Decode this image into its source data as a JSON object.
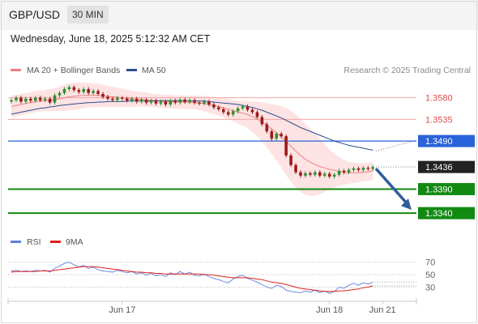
{
  "header": {
    "pair": "GBP/USD",
    "timeframe": "30 MIN"
  },
  "datetime": "Wednesday, June 18, 2025 5:12:32 AM CET",
  "legend": {
    "items": [
      {
        "label": "MA 20 + Bollinger Bands",
        "color": "#f08080"
      },
      {
        "label": "MA 50",
        "color": "#2a4f8f"
      }
    ],
    "credit": "Research © 2025 Trading Central"
  },
  "rsi_legend": {
    "items": [
      {
        "label": "RSI",
        "color": "#5b7fde"
      },
      {
        "label": "9MA",
        "color": "#e0201e"
      }
    ]
  },
  "chart_data": [
    {
      "type": "candlestick",
      "x_labels": [
        "Jun 17",
        "Jun 18",
        "Jun 21"
      ],
      "ylim": [
        1.332,
        1.3598
      ],
      "levels": [
        {
          "value": "1.3580",
          "kind": "resistance",
          "color": "#e14b4b"
        },
        {
          "value": "1.3535",
          "kind": "resistance",
          "color": "#e14b4b"
        },
        {
          "value": "1.3490",
          "kind": "pivot",
          "color": "#2a62d9"
        },
        {
          "value": "1.3436",
          "kind": "last price",
          "color": "#222222"
        },
        {
          "value": "1.3390",
          "kind": "support",
          "color": "#128a12"
        },
        {
          "value": "1.3340",
          "kind": "support",
          "color": "#128a12"
        }
      ],
      "closes": [
        1.3575,
        1.358,
        1.3572,
        1.3578,
        1.3574,
        1.358,
        1.3575,
        1.3578,
        1.357,
        1.3585,
        1.359,
        1.3598,
        1.3602,
        1.3596,
        1.3592,
        1.3598,
        1.359,
        1.3594,
        1.3588,
        1.3582,
        1.3578,
        1.3575,
        1.358,
        1.3578,
        1.3574,
        1.3578,
        1.3572,
        1.3576,
        1.357,
        1.3574,
        1.3568,
        1.3572,
        1.3566,
        1.3574,
        1.357,
        1.3576,
        1.3571,
        1.3575,
        1.357,
        1.3568,
        1.3572,
        1.3566,
        1.356,
        1.3556,
        1.355,
        1.3545,
        1.3552,
        1.3558,
        1.3562,
        1.3555,
        1.355,
        1.354,
        1.3525,
        1.351,
        1.3495,
        1.3505,
        1.35,
        1.346,
        1.344,
        1.3425,
        1.3418,
        1.3423,
        1.342,
        1.3425,
        1.3418,
        1.3422,
        1.3416,
        1.342,
        1.3428,
        1.3425,
        1.343,
        1.3433,
        1.343,
        1.3434,
        1.3432,
        1.3436
      ],
      "ma20": [
        1.3562,
        1.3564,
        1.3566,
        1.3568,
        1.357,
        1.3572,
        1.3573,
        1.3574,
        1.3575,
        1.3576,
        1.3578,
        1.358,
        1.3582,
        1.3583,
        1.3584,
        1.3585,
        1.3585,
        1.3585,
        1.3585,
        1.3584,
        1.3583,
        1.3582,
        1.3581,
        1.358,
        1.3579,
        1.3578,
        1.3577,
        1.3577,
        1.3576,
        1.3575,
        1.3574,
        1.3573,
        1.3572,
        1.3572,
        1.3571,
        1.3571,
        1.3571,
        1.357,
        1.357,
        1.3569,
        1.3568,
        1.3566,
        1.3564,
        1.3562,
        1.3559,
        1.3556,
        1.3553,
        1.355,
        1.3548,
        1.3545,
        1.3541,
        1.3536,
        1.353,
        1.3523,
        1.3515,
        1.3507,
        1.3499,
        1.3489,
        1.3479,
        1.3469,
        1.346,
        1.3452,
        1.3446,
        1.3441,
        1.3437,
        1.3434,
        1.3431,
        1.3429,
        1.3427,
        1.3425,
        1.3424,
        1.3424,
        1.3424,
        1.3425,
        1.3426,
        1.3428
      ],
      "ma50": [
        1.3546,
        1.3548,
        1.355,
        1.3552,
        1.3554,
        1.3556,
        1.3558,
        1.3559,
        1.3561,
        1.3562,
        1.3564,
        1.3565,
        1.3566,
        1.3567,
        1.3568,
        1.3569,
        1.357,
        1.357,
        1.3571,
        1.3571,
        1.3572,
        1.3572,
        1.3572,
        1.3572,
        1.3573,
        1.3573,
        1.3573,
        1.3573,
        1.3573,
        1.3573,
        1.3574,
        1.3574,
        1.3574,
        1.3574,
        1.3574,
        1.3574,
        1.3574,
        1.3574,
        1.3573,
        1.3573,
        1.3573,
        1.3572,
        1.3571,
        1.357,
        1.3569,
        1.3568,
        1.3567,
        1.3566,
        1.3564,
        1.3562,
        1.356,
        1.3557,
        1.3554,
        1.355,
        1.3546,
        1.3542,
        1.3538,
        1.3533,
        1.3528,
        1.3523,
        1.3518,
        1.3514,
        1.351,
        1.3506,
        1.3502,
        1.3498,
        1.3494,
        1.349,
        1.3487,
        1.3484,
        1.3481,
        1.3479,
        1.3477,
        1.3475,
        1.3473,
        1.3471
      ],
      "bb_width": [
        0.0022,
        0.0022,
        0.0022,
        0.0022,
        0.0022,
        0.0022,
        0.0022,
        0.0022,
        0.0023,
        0.0024,
        0.0025,
        0.0027,
        0.0028,
        0.0028,
        0.0028,
        0.0027,
        0.0026,
        0.0025,
        0.0024,
        0.0023,
        0.0022,
        0.0021,
        0.002,
        0.0019,
        0.0018,
        0.0017,
        0.0016,
        0.0015,
        0.0015,
        0.0014,
        0.0014,
        0.0014,
        0.0014,
        0.0014,
        0.0014,
        0.0014,
        0.0014,
        0.0014,
        0.0014,
        0.0015,
        0.0016,
        0.0017,
        0.0018,
        0.0019,
        0.002,
        0.0021,
        0.0022,
        0.0024,
        0.0026,
        0.0028,
        0.0032,
        0.0036,
        0.0041,
        0.0046,
        0.0052,
        0.0058,
        0.0064,
        0.007,
        0.0074,
        0.0076,
        0.0076,
        0.0074,
        0.007,
        0.0065,
        0.0058,
        0.005,
        0.0042,
        0.0035,
        0.003,
        0.0026,
        0.0023,
        0.0021,
        0.002,
        0.0019,
        0.0019,
        0.0019
      ],
      "forecast_arrow": {
        "from": 1.3436,
        "to": 1.334
      }
    },
    {
      "type": "line",
      "name": "RSI",
      "levels": [
        "70",
        "50",
        "30"
      ],
      "ylim": [
        15,
        80
      ],
      "rsi": [
        56,
        57,
        55,
        56,
        55,
        57,
        56,
        57,
        54,
        60,
        64,
        68,
        70,
        66,
        62,
        65,
        60,
        62,
        58,
        56,
        55,
        54,
        57,
        55,
        53,
        55,
        51,
        53,
        49,
        52,
        48,
        50,
        47,
        53,
        50,
        55,
        51,
        54,
        49,
        48,
        51,
        47,
        44,
        42,
        39,
        37,
        43,
        47,
        49,
        44,
        41,
        38,
        34,
        30,
        28,
        33,
        31,
        25,
        23,
        22,
        21,
        24,
        22,
        25,
        21,
        24,
        20,
        23,
        30,
        28,
        33,
        36,
        33,
        37,
        35,
        38
      ],
      "rsi_ma": [
        54,
        55,
        55,
        55,
        55,
        55,
        56,
        56,
        56,
        57,
        58,
        59,
        60,
        61,
        62,
        63,
        63,
        63,
        62,
        61,
        60,
        59,
        58,
        57,
        56,
        55,
        54,
        54,
        53,
        53,
        52,
        52,
        51,
        51,
        51,
        51,
        51,
        51,
        51,
        51,
        50,
        50,
        49,
        48,
        47,
        46,
        45,
        45,
        45,
        45,
        44,
        43,
        42,
        40,
        38,
        37,
        36,
        34,
        32,
        30,
        28,
        27,
        26,
        25,
        24,
        23,
        23,
        23,
        24,
        24,
        25,
        26,
        27,
        29,
        30,
        32
      ]
    }
  ]
}
